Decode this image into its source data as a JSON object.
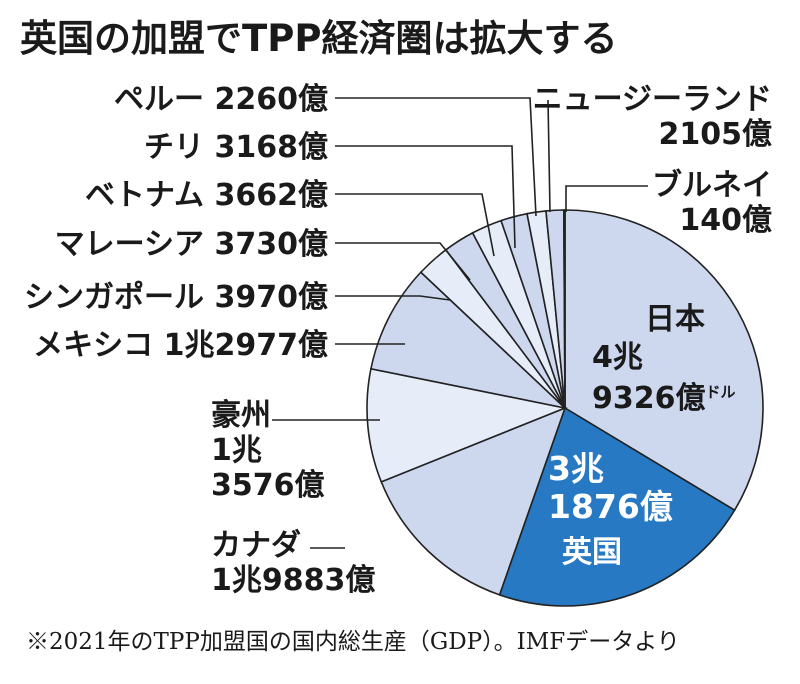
{
  "title": "英国の加盟でTPP経済圏は拡大する",
  "footnote": "※2021年のTPP加盟国の国内総生産（GDP）。IMFデータより",
  "chart_data": {
    "type": "pie",
    "unit": "ドル",
    "slices": [
      {
        "name": "日本",
        "label_value_lines": [
          "4兆",
          "9326億"
        ],
        "value": 49326,
        "color": "#cdd8ef"
      },
      {
        "name": "英国",
        "label_value_lines": [
          "3兆",
          "1876億"
        ],
        "value": 31876,
        "color": "#2679c2"
      },
      {
        "name": "カナダ",
        "label_value_lines": [
          "1兆9883億"
        ],
        "value": 19883,
        "color": "#cdd8ef"
      },
      {
        "name": "豪州",
        "label_value_lines": [
          "1兆",
          "3576億"
        ],
        "value": 13576,
        "color": "#e6edf8"
      },
      {
        "name": "メキシコ",
        "label_value_lines": [
          "1兆2977億"
        ],
        "value": 12977,
        "color": "#cdd8ef"
      },
      {
        "name": "シンガポール",
        "label_value_lines": [
          "3970億"
        ],
        "value": 3970,
        "color": "#e6edf8"
      },
      {
        "name": "マレーシア",
        "label_value_lines": [
          "3730億"
        ],
        "value": 3730,
        "color": "#cdd8ef"
      },
      {
        "name": "ベトナム",
        "label_value_lines": [
          "3662億"
        ],
        "value": 3662,
        "color": "#e6edf8"
      },
      {
        "name": "チリ",
        "label_value_lines": [
          "3168億"
        ],
        "value": 3168,
        "color": "#cdd8ef"
      },
      {
        "name": "ペルー",
        "label_value_lines": [
          "2260億"
        ],
        "value": 2260,
        "color": "#e6edf8"
      },
      {
        "name": "ニュージーランド",
        "label_value_lines": [
          "2105億"
        ],
        "value": 2105,
        "color": "#cdd8ef"
      },
      {
        "name": "ブルネイ",
        "label_value_lines": [
          "140億"
        ],
        "value": 140,
        "color": "#e6edf8"
      }
    ]
  }
}
